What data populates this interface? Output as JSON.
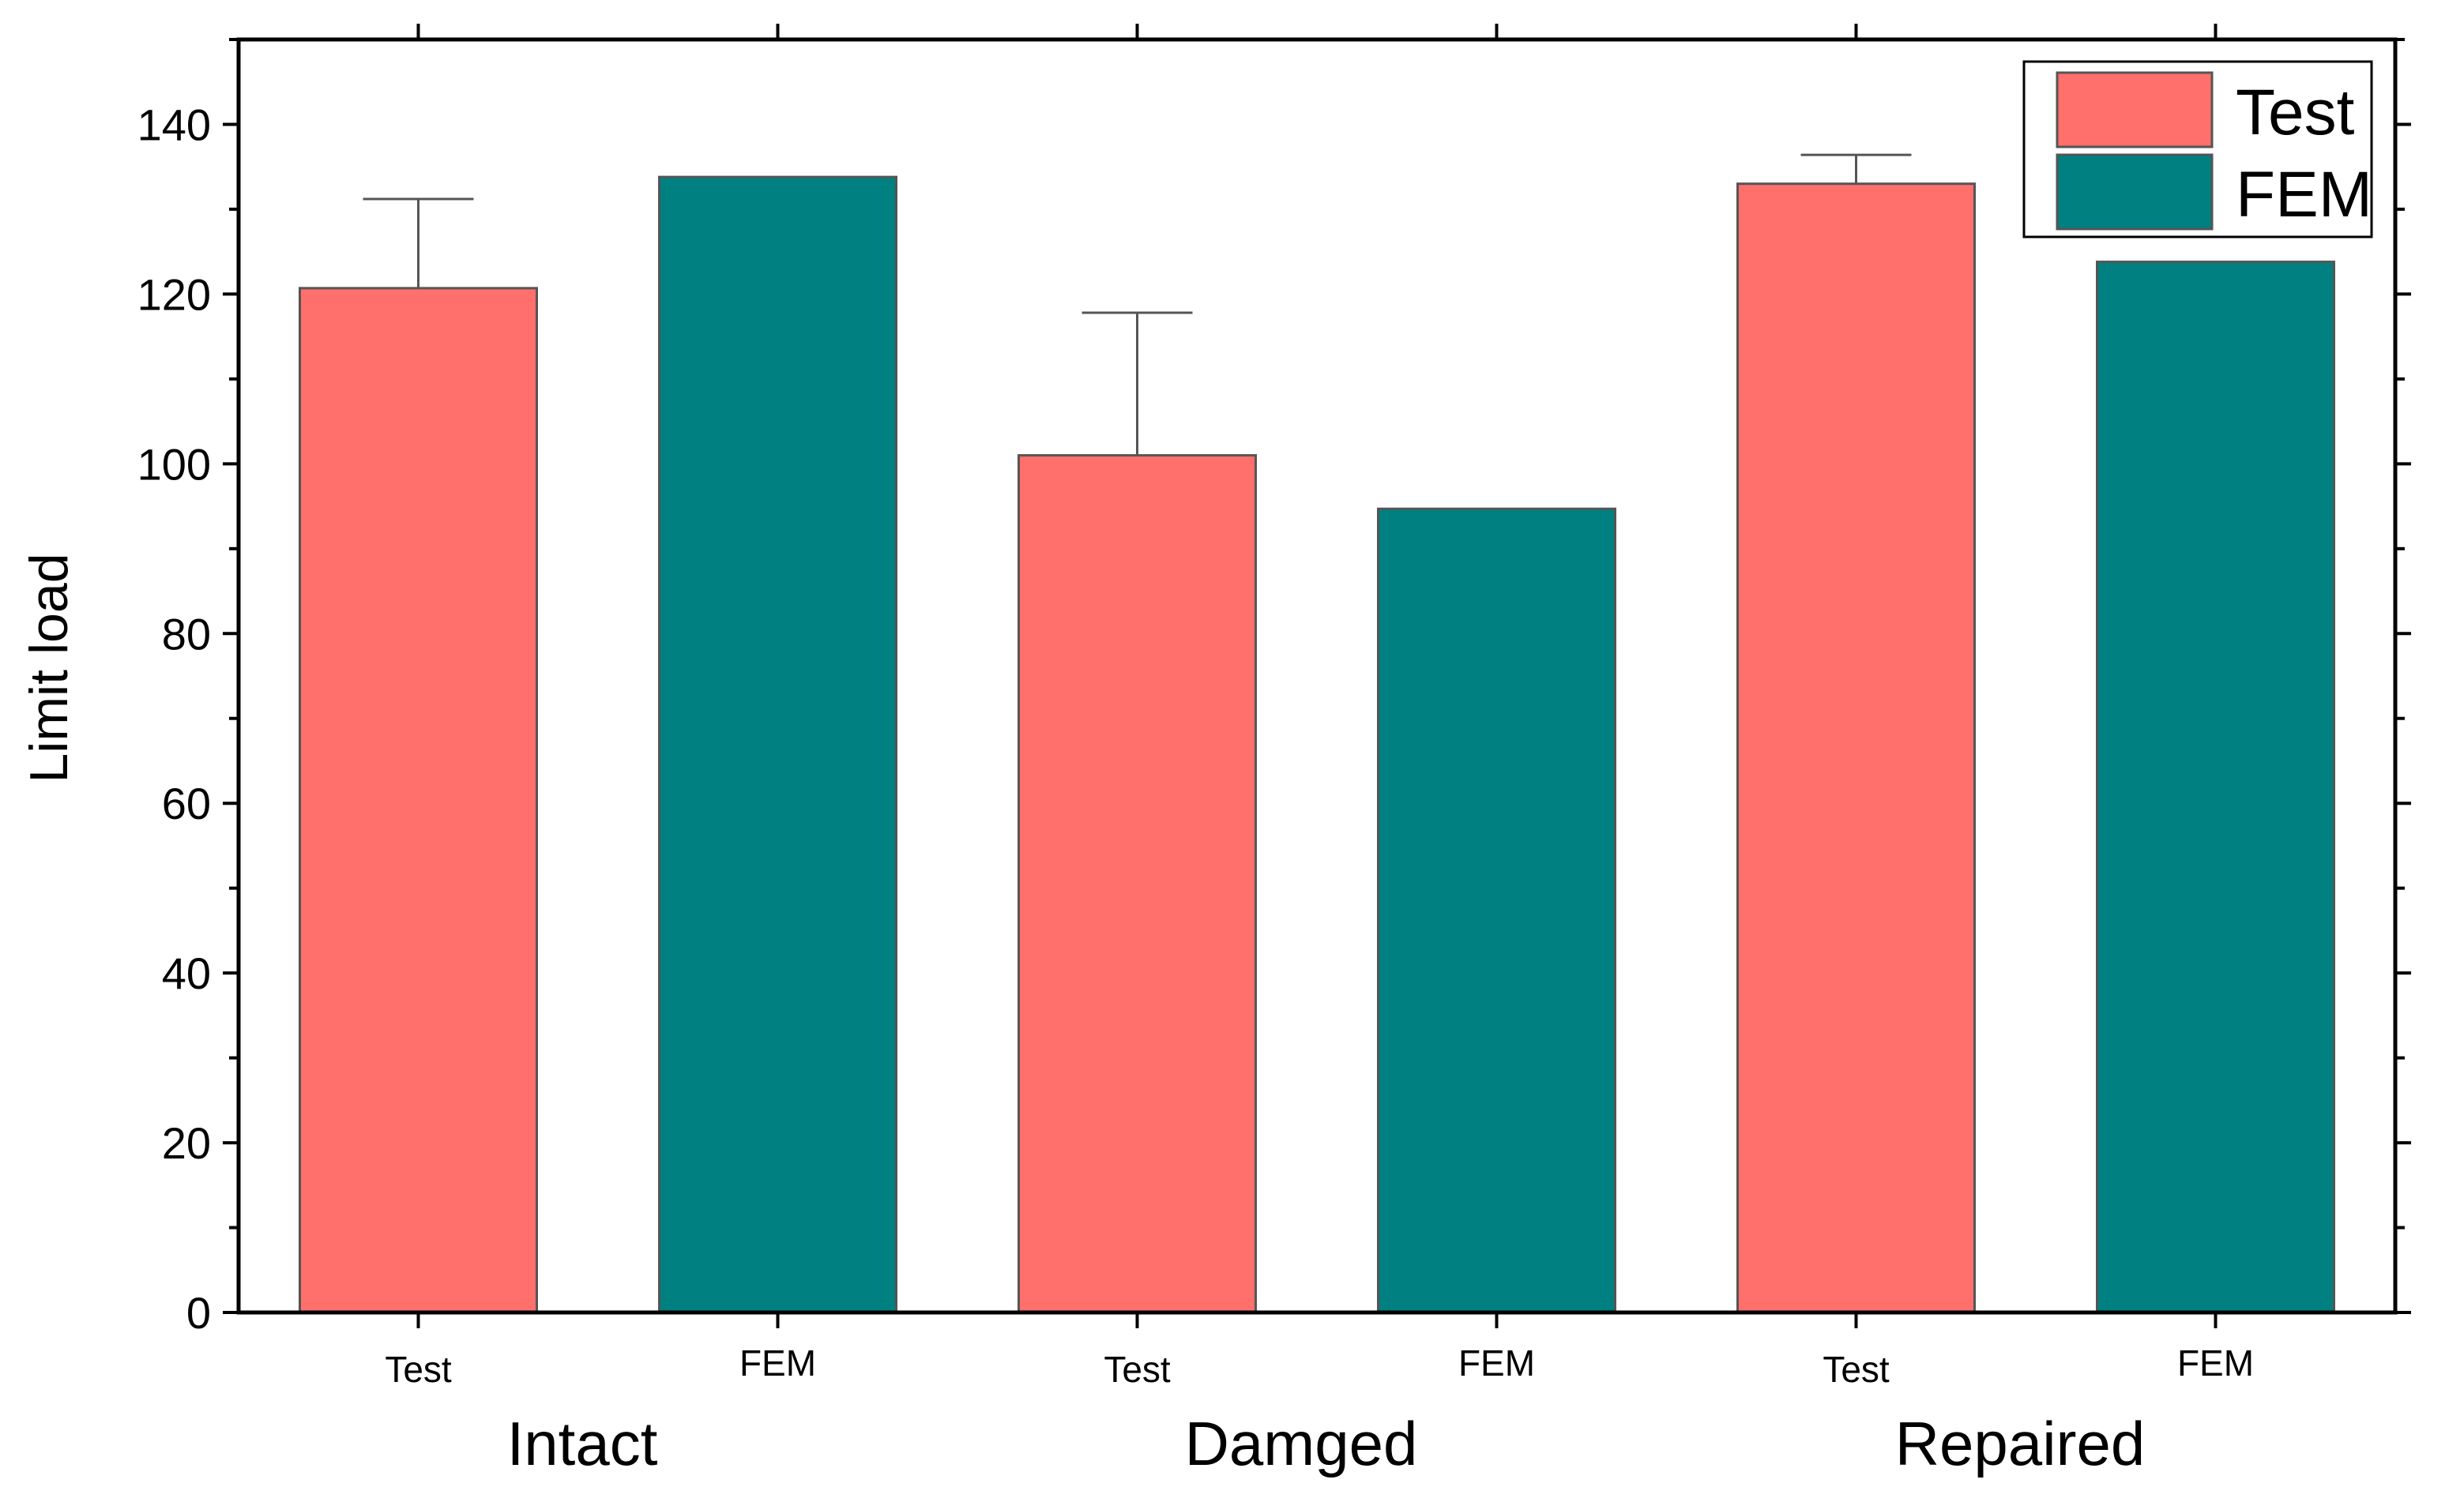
{
  "chart_data": {
    "type": "bar",
    "title": "",
    "xlabel": "",
    "ylabel": "Limit load",
    "ylim": [
      0,
      150
    ],
    "yticks": [
      0,
      20,
      40,
      60,
      80,
      100,
      120,
      140
    ],
    "ytick_labels": [
      "0",
      "20",
      "40",
      "60",
      "80",
      "100",
      "120",
      "140"
    ],
    "grid": false,
    "legend_position": "top-right",
    "legend": [
      {
        "name": "Test",
        "color": "#ff6f6c"
      },
      {
        "name": "FEM",
        "color": "#008080"
      }
    ],
    "groups": [
      "Intact",
      "Damged",
      "Repaired"
    ],
    "categories": [
      "Test",
      "FEM",
      "Test",
      "FEM",
      "Test",
      "FEM"
    ],
    "bars": [
      {
        "group": "Intact",
        "label": "Test",
        "series": "Test",
        "value": 120.7,
        "error_plus": 10.5
      },
      {
        "group": "Intact",
        "label": "FEM",
        "series": "FEM",
        "value": 133.8
      },
      {
        "group": "Damged",
        "label": "Test",
        "series": "Test",
        "value": 101.0,
        "error_plus": 16.8
      },
      {
        "group": "Damged",
        "label": "FEM",
        "series": "FEM",
        "value": 94.7
      },
      {
        "group": "Repaired",
        "label": "Test",
        "series": "Test",
        "value": 133.0,
        "error_plus": 3.4
      },
      {
        "group": "Repaired",
        "label": "FEM",
        "series": "FEM",
        "value": 123.8
      }
    ]
  }
}
